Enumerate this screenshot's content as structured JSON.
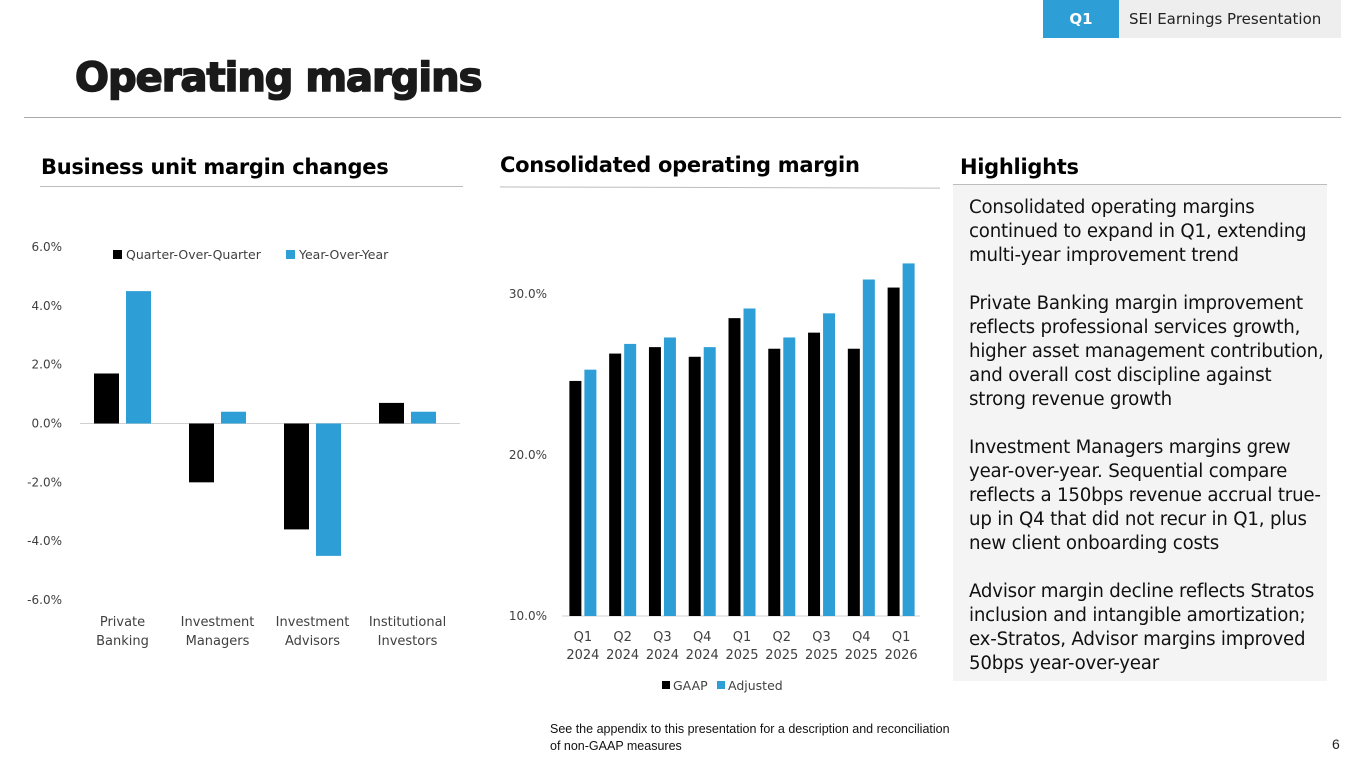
{
  "header": {
    "period_tag": "Q1 2026",
    "presentation_title": "SEI Earnings Presentation",
    "page_title": "Operating margins"
  },
  "sections": {
    "left_title": "Business unit margin changes",
    "center_title": "Consolidated operating margin",
    "right_title": "Highlights"
  },
  "colors": {
    "accent": "#2e9fd6",
    "black": "#000000",
    "highlights_bg": "#f4f4f4"
  },
  "highlights": [
    "Consolidated operating margins continued to expand in Q1, extending multi-year improvement trend",
    "Private Banking margin improvement reflects professional services growth, higher asset management contribution, and overall cost discipline against strong revenue growth",
    "Investment Managers margins grew year-over-year. Sequential compare reflects a 150bps revenue accrual true-up in Q4 that did not recur in Q1, plus new client onboarding costs",
    "Advisor margin decline reflects Stratos inclusion and intangible amortization; ex-Stratos, Advisor margins improved 50bps year-over-year"
  ],
  "footer": {
    "footnote": "See the appendix to this presentation for a description and reconciliation of non-GAAP measures",
    "page_number": "6"
  },
  "chart_data": [
    {
      "type": "bar",
      "title": "Business unit margin changes",
      "categories": [
        [
          "Private",
          "Banking"
        ],
        [
          "Investment",
          "Managers"
        ],
        [
          "Investment",
          "Advisors"
        ],
        [
          "Institutional",
          "Investors"
        ]
      ],
      "series": [
        {
          "name": "Quarter-Over-Quarter",
          "color": "#000000",
          "values": [
            1.7,
            -2.0,
            -3.6,
            0.7
          ]
        },
        {
          "name": "Year-Over-Year",
          "color": "#2e9fd6",
          "values": [
            4.5,
            0.4,
            -4.5,
            0.4
          ]
        }
      ],
      "yticks": [
        6.0,
        4.0,
        2.0,
        0.0,
        -2.0,
        -4.0,
        -6.0
      ],
      "ytick_labels": [
        "6.0%",
        "4.0%",
        "2.0%",
        "0.0%",
        "-2.0%",
        "-4.0%",
        "-6.0%"
      ],
      "ylim": [
        -6.0,
        6.0
      ],
      "xlabel": "",
      "ylabel": "",
      "legend": "top",
      "grid": false
    },
    {
      "type": "bar",
      "title": "Consolidated operating margin",
      "categories": [
        [
          "Q1",
          "2024"
        ],
        [
          "Q2",
          "2024"
        ],
        [
          "Q3",
          "2024"
        ],
        [
          "Q4",
          "2024"
        ],
        [
          "Q1",
          "2025"
        ],
        [
          "Q2",
          "2025"
        ],
        [
          "Q3",
          "2025"
        ],
        [
          "Q4",
          "2025"
        ],
        [
          "Q1",
          "2026"
        ]
      ],
      "series": [
        {
          "name": "GAAP",
          "color": "#000000",
          "values": [
            24.6,
            26.3,
            26.7,
            26.1,
            28.5,
            26.6,
            27.6,
            26.6,
            30.4
          ]
        },
        {
          "name": "Adjusted",
          "color": "#2e9fd6",
          "values": [
            25.3,
            26.9,
            27.3,
            26.7,
            29.1,
            27.3,
            28.8,
            30.9,
            31.9
          ]
        }
      ],
      "yticks": [
        30.0,
        20.0,
        10.0
      ],
      "ytick_labels": [
        "30.0%",
        "20.0%",
        "10.0%"
      ],
      "ylim": [
        10.0,
        34.0
      ],
      "xlabel": "",
      "ylabel": "",
      "legend": "bottom",
      "grid": false
    }
  ]
}
